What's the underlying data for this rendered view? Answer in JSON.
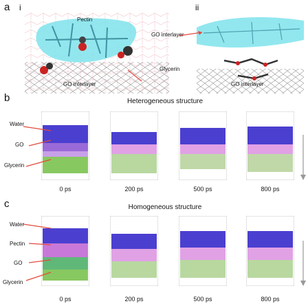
{
  "panel_a": {
    "letter": "a",
    "sub_i": "i",
    "sub_ii": "ii",
    "labels_i": {
      "pectin": "Pectin",
      "glycerin": "Glycerin",
      "go_interlayer": "GO interlayer"
    },
    "labels_ii": {
      "go_interlayer_top": "GO interlayer",
      "go_interlayer_bottom": "GO interlayer"
    }
  },
  "panel_b": {
    "letter": "b",
    "title": "Heterogeneous structure",
    "side_labels": [
      "Water",
      "GO",
      "Glycerin"
    ],
    "times": [
      "0 ps",
      "200 ps",
      "500 ps",
      "800 ps"
    ]
  },
  "panel_c": {
    "letter": "c",
    "title": "Homogeneous structure",
    "side_labels": [
      "Water",
      "Pectin",
      "GO",
      "Glycerin"
    ],
    "times": [
      "0 ps",
      "200 ps",
      "500 ps",
      "800 ps"
    ]
  },
  "colors": {
    "water": "#4b3fd0",
    "pectin": "#d98adf",
    "go": "#c8d0c8",
    "glycerin": "#a8d870",
    "pectin_surface": "#7fe3ec",
    "arrow": "#e24a3b"
  }
}
